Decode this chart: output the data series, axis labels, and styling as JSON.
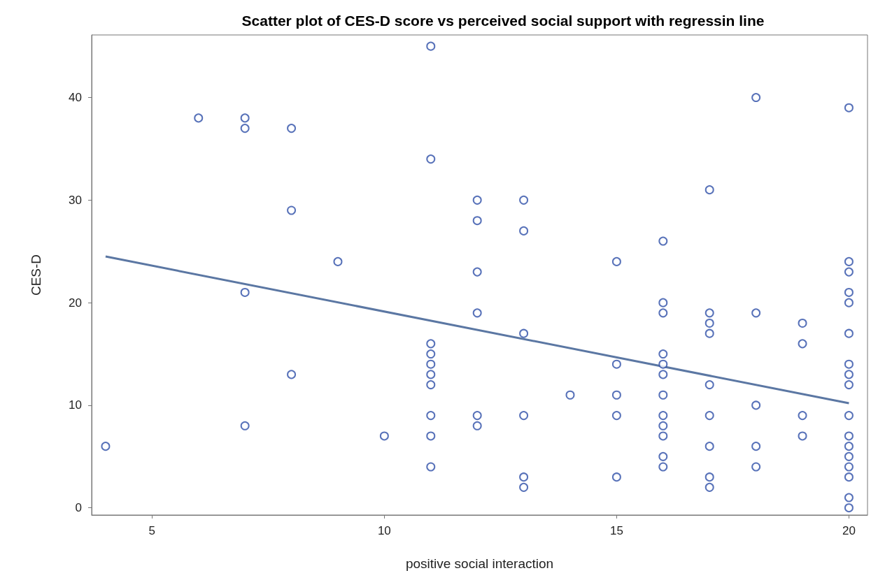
{
  "chart_data": {
    "type": "scatter",
    "title": "Scatter plot of CES-D score vs perceived social support with regressin line",
    "xlabel": "positive social interaction",
    "ylabel": "CES-D",
    "xlim": [
      3.7,
      20.4
    ],
    "xticks": [
      5,
      10,
      15,
      20
    ],
    "ylim": [
      -0.7,
      46.1
    ],
    "yticks": [
      0,
      10,
      20,
      30,
      40
    ],
    "grid": false,
    "marker": "circle",
    "series": [
      {
        "color": "#2e4fa8",
        "x": [
          4,
          6,
          7,
          7,
          7,
          7,
          8,
          8,
          8,
          9,
          10,
          11,
          11,
          11,
          11,
          11,
          11,
          11,
          11,
          11,
          11,
          12,
          12,
          12,
          12,
          12,
          12,
          13,
          13,
          13,
          13,
          13,
          13,
          14,
          15,
          15,
          15,
          15,
          15,
          16,
          16,
          16,
          16,
          16,
          16,
          16,
          16,
          16,
          16,
          16,
          16,
          17,
          17,
          17,
          17,
          17,
          17,
          17,
          17,
          17,
          18,
          18,
          18,
          18,
          18,
          19,
          19,
          19,
          19,
          20,
          20,
          20,
          20,
          20,
          20,
          20,
          20,
          20,
          20,
          20,
          20,
          20,
          20,
          20,
          20,
          20
        ],
        "values": [
          6,
          38,
          38,
          37,
          21,
          8,
          37,
          29,
          13,
          24,
          7,
          45,
          34,
          16,
          15,
          14,
          13,
          12,
          9,
          7,
          4,
          30,
          28,
          23,
          19,
          9,
          8,
          30,
          27,
          17,
          9,
          3,
          2,
          11,
          24,
          14,
          11,
          9,
          3,
          26,
          20,
          19,
          15,
          14,
          13,
          11,
          9,
          8,
          7,
          5,
          4,
          31,
          19,
          18,
          17,
          12,
          9,
          6,
          3,
          2,
          40,
          19,
          10,
          6,
          4,
          18,
          16,
          9,
          7,
          39,
          24,
          23,
          21,
          20,
          17,
          14,
          13,
          12,
          9,
          7,
          6,
          5,
          4,
          3,
          1,
          0
        ]
      },
      {
        "type": "line",
        "color": "#5b77a3",
        "marker": "none",
        "x": [
          4,
          20
        ],
        "values": [
          24.5,
          10.2
        ]
      }
    ]
  }
}
